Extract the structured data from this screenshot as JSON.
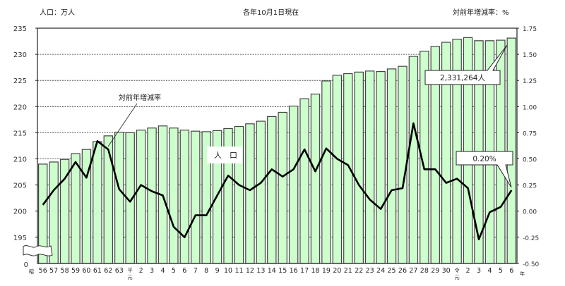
{
  "chart_data": {
    "type": "bar+line",
    "title": "各年10月1日現在",
    "left_axis_label": "人口：万人",
    "right_axis_label": "対前年増減率：%",
    "x_unit_label": "年",
    "categories": [
      "昭56",
      "57",
      "58",
      "59",
      "60",
      "61",
      "62",
      "63",
      "平元",
      "2",
      "3",
      "4",
      "5",
      "6",
      "7",
      "8",
      "9",
      "10",
      "11",
      "12",
      "13",
      "14",
      "15",
      "16",
      "17",
      "18",
      "19",
      "20",
      "21",
      "22",
      "23",
      "24",
      "25",
      "26",
      "27",
      "28",
      "29",
      "30",
      "令元",
      "2",
      "3",
      "4",
      "5",
      "6"
    ],
    "category_ticks": [
      "56",
      "57",
      "58",
      "59",
      "60",
      "61",
      "62",
      "63",
      "平\n元",
      "2",
      "3",
      "4",
      "5",
      "6",
      "7",
      "8",
      "9",
      "10",
      "11",
      "12",
      "13",
      "14",
      "15",
      "16",
      "17",
      "18",
      "19",
      "20",
      "21",
      "22",
      "23",
      "24",
      "25",
      "26",
      "27",
      "28",
      "29",
      "30",
      "令\n元",
      "2",
      "3",
      "4",
      "5",
      "6"
    ],
    "era_prefix_first": "昭",
    "series": [
      {
        "name": "人口",
        "type": "bar",
        "axis": "left",
        "color": "#ccffcc",
        "values": [
          209.0,
          209.4,
          209.9,
          211.0,
          211.8,
          213.3,
          214.4,
          215.1,
          215.0,
          215.5,
          215.9,
          216.3,
          215.9,
          215.5,
          215.3,
          215.2,
          215.4,
          215.8,
          216.2,
          216.7,
          217.2,
          218.1,
          218.9,
          220.1,
          221.5,
          222.4,
          224.9,
          226.0,
          226.3,
          226.6,
          226.8,
          226.7,
          227.2,
          227.7,
          229.6,
          230.6,
          231.5,
          232.3,
          232.9,
          233.2,
          232.6,
          232.6,
          232.7,
          233.1
        ]
      },
      {
        "name": "対前年増減率",
        "type": "line",
        "axis": "right",
        "color": "#000000",
        "values": [
          0.06,
          0.2,
          0.31,
          0.47,
          0.32,
          0.67,
          0.59,
          0.21,
          0.09,
          0.25,
          0.19,
          0.15,
          -0.15,
          -0.25,
          -0.04,
          -0.04,
          0.15,
          0.34,
          0.25,
          0.2,
          0.27,
          0.4,
          0.33,
          0.4,
          0.59,
          0.38,
          0.6,
          0.5,
          0.44,
          0.25,
          0.11,
          0.02,
          0.2,
          0.22,
          0.84,
          0.4,
          0.4,
          0.27,
          0.31,
          0.22,
          -0.27,
          -0.01,
          0.04,
          0.2
        ]
      }
    ],
    "left_axis": {
      "ticks": [
        "235",
        "230",
        "225",
        "220",
        "215",
        "210",
        "205",
        "200",
        "195",
        "0"
      ],
      "range": [
        195,
        235
      ],
      "break": true
    },
    "right_axis": {
      "ticks": [
        "1.75",
        "1.50",
        "1.25",
        "1.00",
        "0.75",
        "0.50",
        "0.25",
        "0.00",
        "-0.25",
        "-0.50"
      ],
      "range": [
        -0.5,
        1.75
      ]
    },
    "grid": true,
    "annotations": [
      {
        "text": "2,331,264人",
        "target": "人口 令和6"
      },
      {
        "text": "0.20%",
        "target": "対前年増減率 令和6"
      },
      {
        "text": "対前年増減率",
        "target": "line label"
      },
      {
        "text": "人　口",
        "target": "bar label"
      }
    ]
  }
}
